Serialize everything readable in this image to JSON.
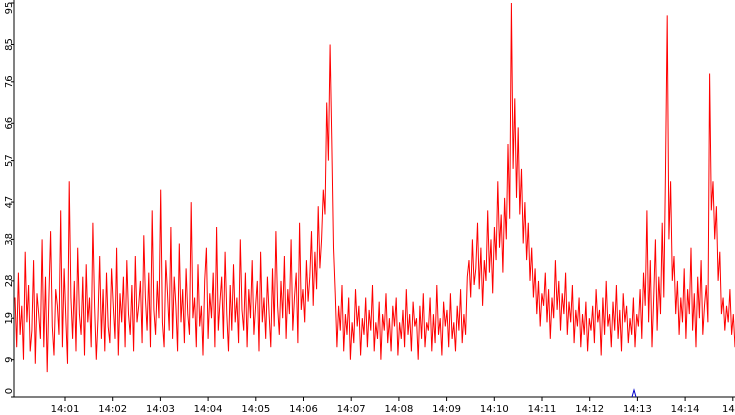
{
  "chart_data": {
    "type": "line",
    "title": "",
    "xlabel": "",
    "ylabel": "",
    "ylim": [
      0,
      95
    ],
    "grid": false,
    "legend": "none",
    "y_ticks": [
      "0",
      "9",
      "19",
      "28",
      "38",
      "47",
      "57",
      "66",
      "76",
      "85",
      "95"
    ],
    "x_ticks": [
      "14:01",
      "14:02",
      "14:03",
      "14:04",
      "14:05",
      "14:06",
      "14:07",
      "14:08",
      "14:09",
      "14:10",
      "14:11",
      "14:12",
      "14:13",
      "14:14",
      "14"
    ],
    "series": [
      {
        "color": "#ff0000",
        "values": [
          24,
          12,
          30,
          15,
          22,
          9,
          35,
          18,
          27,
          11,
          16,
          33,
          8,
          25,
          20,
          14,
          38,
          12,
          29,
          6,
          24,
          40,
          17,
          10,
          26,
          22,
          15,
          45,
          12,
          31,
          19,
          8,
          52,
          24,
          14,
          28,
          11,
          36,
          20,
          15,
          29,
          10,
          32,
          18,
          24,
          12,
          42,
          22,
          9,
          19,
          34,
          14,
          26,
          11,
          30,
          17,
          13,
          31,
          22,
          14,
          36,
          10,
          25,
          18,
          29,
          12,
          33,
          20,
          15,
          27,
          11,
          34,
          18,
          22,
          28,
          13,
          39,
          24,
          16,
          30,
          12,
          45,
          21,
          15,
          28,
          19,
          50,
          18,
          12,
          33,
          25,
          16,
          41,
          14,
          29,
          22,
          11,
          37,
          18,
          26,
          13,
          31,
          20,
          15,
          47,
          19,
          24,
          12,
          32,
          17,
          22,
          10,
          28,
          36,
          14,
          25,
          19,
          30,
          12,
          41,
          16,
          23,
          29,
          14,
          35,
          20,
          11,
          27,
          16,
          32,
          18,
          24,
          13,
          38,
          21,
          16,
          30,
          12,
          26,
          19,
          33,
          15,
          22,
          28,
          11,
          35,
          18,
          24,
          14,
          29,
          20,
          12,
          31,
          17,
          40,
          22,
          15,
          28,
          19,
          34,
          14,
          26,
          20,
          38,
          16,
          24,
          30,
          13,
          42,
          21,
          26,
          18,
          33,
          23,
          29,
          40,
          22,
          35,
          26,
          46,
          31,
          38,
          50,
          44,
          71,
          57,
          85,
          62,
          36,
          25,
          12,
          22,
          16,
          27,
          11,
          20,
          15,
          24,
          9,
          18,
          13,
          26,
          17,
          22,
          10,
          19,
          15,
          24,
          12,
          21,
          16,
          27,
          11,
          18,
          14,
          23,
          9,
          20,
          16,
          25,
          13,
          19,
          11,
          22,
          17,
          24,
          10,
          18,
          14,
          21,
          12,
          26,
          15,
          20,
          11,
          23,
          17,
          19,
          9,
          22,
          14,
          25,
          12,
          18,
          16,
          24,
          11,
          20,
          13,
          27,
          15,
          19,
          10,
          23,
          17,
          21,
          12,
          25,
          14,
          18,
          11,
          22,
          16,
          26,
          13,
          20,
          15,
          29,
          33,
          24,
          38,
          27,
          31,
          42,
          26,
          36,
          22,
          33,
          28,
          45,
          30,
          38,
          25,
          41,
          33,
          52,
          36,
          44,
          30,
          48,
          38,
          61,
          43,
          95,
          55,
          72,
          48,
          65,
          44,
          55,
          37,
          47,
          33,
          42,
          28,
          36,
          24,
          31,
          20,
          28,
          17,
          25,
          22,
          30,
          18,
          26,
          14,
          24,
          19,
          33,
          21,
          28,
          16,
          25,
          20,
          30,
          15,
          23,
          18,
          27,
          13,
          21,
          17,
          24,
          12,
          20,
          15,
          23,
          11,
          19,
          16,
          22,
          13,
          26,
          18,
          21,
          10,
          24,
          15,
          28,
          17,
          20,
          12,
          23,
          16,
          27,
          14,
          21,
          11,
          25,
          18,
          22,
          13,
          19,
          15,
          24,
          12,
          20,
          17,
          26,
          14,
          30,
          22,
          45,
          18,
          33,
          12,
          24,
          38,
          16,
          29,
          20,
          42,
          24,
          55,
          92,
          38,
          52,
          28,
          34,
          20,
          28,
          15,
          24,
          18,
          31,
          14,
          26,
          20,
          36,
          16,
          25,
          12,
          29,
          19,
          33,
          15,
          22,
          27,
          18,
          78,
          45,
          52,
          38,
          46,
          28,
          35,
          20,
          24,
          16,
          22,
          18,
          26,
          15,
          20,
          12
        ]
      }
    ]
  }
}
